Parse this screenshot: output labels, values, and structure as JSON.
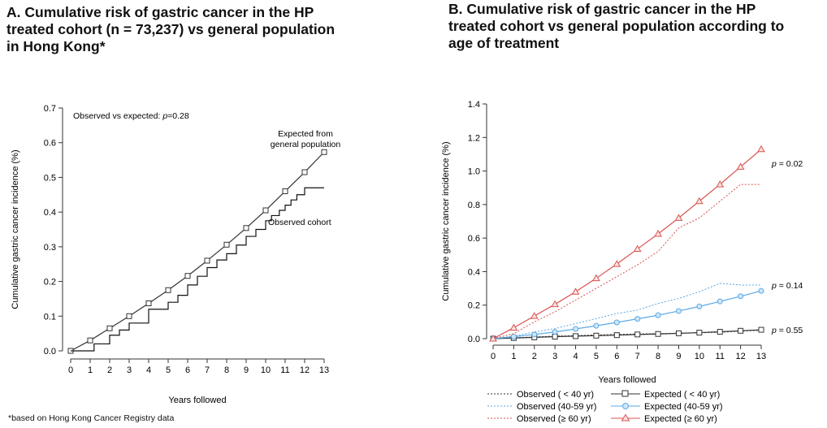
{
  "panel_a": {
    "title_lines": [
      "A. Cumulative risk of gastric cancer in the HP",
      "treated cohort (n = 73,237) vs general population",
      "in Hong Kong*"
    ],
    "annotation_prefix": "Observed vs expected: ",
    "annotation_p": "p",
    "annotation_suffix": "=0.28",
    "label_expected_lines": [
      "Expected from",
      "general population"
    ],
    "label_observed": "Observed cohort",
    "footnote": "*based on Hong Kong Cancer Registry data"
  },
  "panel_b": {
    "title_lines": [
      "B. Cumulative risk of gastric cancer in the HP",
      "treated cohort vs general population according to",
      "age of treatment"
    ],
    "p_labels": [
      {
        "p": "p",
        "value": " = 0.02"
      },
      {
        "p": "p",
        "value": " = 0.14"
      },
      {
        "p": "p",
        "value": " = 0.55"
      }
    ],
    "legend": [
      {
        "label": "Observed ( < 40 yr)",
        "color": "#333333",
        "style": "dotted"
      },
      {
        "label": "Expected ( < 40 yr)",
        "color": "#333333",
        "style": "solid",
        "marker": "square"
      },
      {
        "label": "Observed (40-59 yr)",
        "color": "#5aa9e6",
        "style": "dotted"
      },
      {
        "label": "Expected (40-59 yr)",
        "color": "#5aa9e6",
        "style": "solid",
        "marker": "circle"
      },
      {
        "label": "Observed (≥ 60 yr)",
        "color": "#d9534f",
        "style": "dotted"
      },
      {
        "label": "Expected (≥ 60 yr)",
        "color": "#d9534f",
        "style": "solid",
        "marker": "triangle"
      }
    ]
  },
  "chart_data": [
    {
      "type": "line",
      "xlabel": "Years followed",
      "ylabel": "Cumulative gastric cancer incidence (%)",
      "xlim": [
        0,
        13
      ],
      "ylim": [
        0,
        0.7
      ],
      "x_ticks": [
        "0",
        "1",
        "2",
        "3",
        "4",
        "5",
        "6",
        "7",
        "8",
        "9",
        "10",
        "11",
        "12",
        "13"
      ],
      "y_ticks": [
        "0.0",
        "0.1",
        "0.2",
        "0.3",
        "0.4",
        "0.5",
        "0.6",
        "0.7"
      ],
      "grid": false,
      "series": [
        {
          "style": "solid",
          "marker": "square",
          "color": "#333333",
          "x": [
            0,
            1,
            2,
            3,
            4,
            5,
            6,
            7,
            8,
            9,
            10,
            11,
            12,
            13
          ],
          "y": [
            0,
            0.03,
            0.065,
            0.1,
            0.137,
            0.175,
            0.216,
            0.26,
            0.306,
            0.354,
            0.405,
            0.46,
            0.515,
            0.573
          ]
        },
        {
          "style": "step",
          "color": "#111111",
          "x": [
            0,
            1,
            1.2,
            2,
            2.5,
            3,
            4,
            5,
            5.5,
            6,
            6.5,
            7,
            7.5,
            8,
            8.5,
            9,
            9.5,
            10,
            10.3,
            10.7,
            11,
            11.3,
            11.6,
            12,
            13
          ],
          "y": [
            0,
            0,
            0.02,
            0.045,
            0.06,
            0.08,
            0.12,
            0.14,
            0.16,
            0.19,
            0.215,
            0.24,
            0.262,
            0.28,
            0.305,
            0.33,
            0.35,
            0.375,
            0.39,
            0.405,
            0.42,
            0.435,
            0.45,
            0.47,
            0.47
          ]
        }
      ]
    },
    {
      "type": "line",
      "xlabel": "Years followed",
      "ylabel": "Cumulative gastric cancer incidence (%)",
      "xlim": [
        0,
        13
      ],
      "ylim": [
        0,
        1.4
      ],
      "x_ticks": [
        "0",
        "1",
        "2",
        "3",
        "4",
        "5",
        "6",
        "7",
        "8",
        "9",
        "10",
        "11",
        "12",
        "13"
      ],
      "y_ticks": [
        "0.0",
        "0.2",
        "0.4",
        "0.6",
        "0.8",
        "1.0",
        "1.2",
        "1.4"
      ],
      "grid": false,
      "series": [
        {
          "style": "dotted",
          "color": "#333333",
          "x": [
            0,
            1,
            2,
            3,
            4,
            5,
            6,
            7,
            8,
            9,
            10,
            11,
            12,
            13
          ],
          "y": [
            0,
            0.005,
            0.01,
            0.015,
            0.018,
            0.022,
            0.025,
            0.028,
            0.03,
            0.032,
            0.035,
            0.038,
            0.045,
            0.05
          ]
        },
        {
          "style": "solid",
          "marker": "square",
          "color": "#333333",
          "x": [
            0,
            1,
            2,
            3,
            4,
            5,
            6,
            7,
            8,
            9,
            10,
            11,
            12,
            13
          ],
          "y": [
            0,
            0.004,
            0.008,
            0.012,
            0.015,
            0.018,
            0.021,
            0.025,
            0.028,
            0.032,
            0.036,
            0.041,
            0.047,
            0.053
          ]
        },
        {
          "style": "dotted",
          "color": "#5aa9e6",
          "x": [
            0,
            1,
            2,
            3,
            4,
            5,
            6,
            7,
            8,
            9,
            10,
            11,
            12,
            13
          ],
          "y": [
            0,
            0.015,
            0.04,
            0.06,
            0.09,
            0.12,
            0.15,
            0.17,
            0.21,
            0.24,
            0.28,
            0.33,
            0.32,
            0.32
          ]
        },
        {
          "style": "solid",
          "marker": "circle",
          "color": "#5aa9e6",
          "x": [
            0,
            1,
            2,
            3,
            4,
            5,
            6,
            7,
            8,
            9,
            10,
            11,
            12,
            13
          ],
          "y": [
            0,
            0.012,
            0.025,
            0.04,
            0.058,
            0.077,
            0.097,
            0.118,
            0.14,
            0.165,
            0.192,
            0.222,
            0.253,
            0.285
          ]
        },
        {
          "style": "dotted",
          "color": "#d9534f",
          "x": [
            0,
            1,
            2,
            3,
            4,
            5,
            6,
            7,
            8,
            9,
            10,
            11,
            12,
            13
          ],
          "y": [
            0,
            0.03,
            0.1,
            0.16,
            0.23,
            0.3,
            0.37,
            0.44,
            0.52,
            0.66,
            0.72,
            0.82,
            0.92,
            0.92
          ]
        },
        {
          "style": "solid",
          "marker": "triangle",
          "color": "#d9534f",
          "x": [
            0,
            1,
            2,
            3,
            4,
            5,
            6,
            7,
            8,
            9,
            10,
            11,
            12,
            13
          ],
          "y": [
            0,
            0.065,
            0.135,
            0.205,
            0.28,
            0.36,
            0.445,
            0.535,
            0.625,
            0.72,
            0.82,
            0.92,
            1.025,
            1.13
          ]
        }
      ]
    }
  ]
}
